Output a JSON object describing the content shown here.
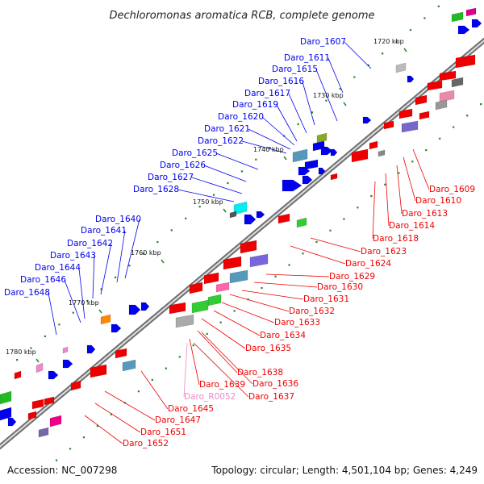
{
  "title": "Dechloromonas aromatica RCB, complete genome",
  "footer": {
    "accession": "Accession: NC_007298",
    "summary": "Topology: circular; Length: 4,501,104 bp; Genes: 4,249"
  },
  "kbp_labels": [
    "1720 kbp",
    "1730 kbp",
    "1740 kbp",
    "1750 kbp",
    "1760 kbp",
    "1770 kbp",
    "1780 kbp"
  ],
  "upper_genes": [
    "Daro_1607",
    "Daro_1611",
    "Daro_1615",
    "Daro_1616",
    "Daro_1617",
    "Daro_1619",
    "Daro_1620",
    "Daro_1621",
    "Daro_1622",
    "Daro_1625",
    "Daro_1626",
    "Daro_1627",
    "Daro_1628",
    "Daro_1640",
    "Daro_1641",
    "Daro_1642",
    "Daro_1643",
    "Daro_1644",
    "Daro_1646",
    "Daro_1648"
  ],
  "lower_genes": [
    "Daro_1609",
    "Daro_1610",
    "Daro_1613",
    "Daro_1614",
    "Daro_1618",
    "Daro_1623",
    "Daro_1624",
    "Daro_1629",
    "Daro_1630",
    "Daro_1631",
    "Daro_1632",
    "Daro_1633",
    "Daro_1634",
    "Daro_1635",
    "Daro_1638",
    "Daro_1636",
    "Daro_1639",
    "Daro_1637",
    "Daro_R0052",
    "Daro_1645",
    "Daro_1647",
    "Daro_1651",
    "Daro_1652"
  ],
  "colors": {
    "upper_strand": "#0000ee",
    "lower_strand": "#ee0000",
    "rna": "#ee88cc",
    "backbone": "#777777",
    "tick": "#228822"
  }
}
